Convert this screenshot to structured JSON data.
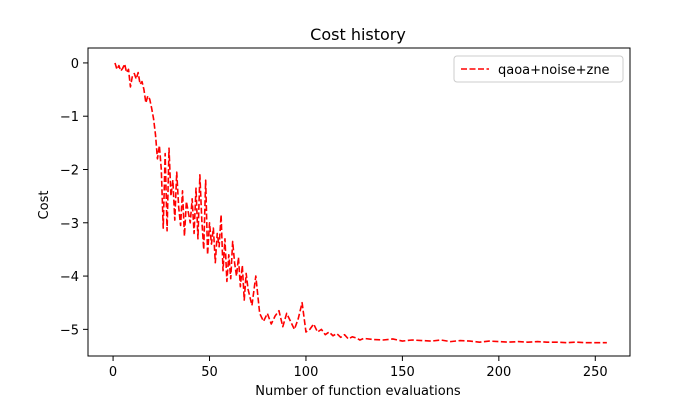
{
  "chart_data": {
    "type": "line",
    "title": "Cost history",
    "xlabel": "Number of function evaluations",
    "ylabel": "Cost",
    "xlim": [
      -13,
      268
    ],
    "ylim": [
      -5.5,
      0.28
    ],
    "xticks": [
      0,
      50,
      100,
      150,
      200,
      250
    ],
    "yticks": [
      0,
      -1,
      -2,
      -3,
      -4,
      -5
    ],
    "xtick_labels": [
      "0",
      "50",
      "100",
      "150",
      "200",
      "250"
    ],
    "ytick_labels": [
      "0",
      "−1",
      "−2",
      "−3",
      "−4",
      "−5"
    ],
    "grid": false,
    "legend_position": "top-right",
    "series": [
      {
        "name": "qaoa+noise+zne",
        "color": "#ff0000",
        "linestyle": "dashed",
        "x": [
          1,
          2,
          3,
          4,
          5,
          6,
          7,
          8,
          9,
          10,
          11,
          12,
          13,
          14,
          15,
          16,
          17,
          18,
          19,
          20,
          21,
          22,
          23,
          24,
          25,
          26,
          27,
          28,
          29,
          30,
          31,
          32,
          33,
          34,
          35,
          36,
          37,
          38,
          39,
          40,
          41,
          42,
          43,
          44,
          45,
          46,
          47,
          48,
          49,
          50,
          51,
          52,
          53,
          54,
          55,
          56,
          57,
          58,
          59,
          60,
          61,
          62,
          63,
          64,
          65,
          66,
          67,
          68,
          69,
          70,
          72,
          74,
          76,
          78,
          80,
          82,
          84,
          86,
          88,
          90,
          92,
          94,
          96,
          98,
          100,
          102,
          104,
          106,
          108,
          110,
          112,
          114,
          116,
          118,
          120,
          122,
          124,
          126,
          128,
          130,
          135,
          140,
          145,
          150,
          155,
          160,
          165,
          170,
          175,
          180,
          185,
          190,
          195,
          200,
          205,
          210,
          215,
          220,
          225,
          230,
          235,
          240,
          245,
          250,
          256
        ],
        "y": [
          0.0,
          -0.12,
          -0.05,
          -0.15,
          -0.1,
          -0.02,
          -0.18,
          -0.12,
          -0.45,
          -0.25,
          -0.2,
          -0.3,
          -0.18,
          -0.4,
          -0.35,
          -0.5,
          -0.75,
          -0.62,
          -0.68,
          -0.85,
          -1.05,
          -1.35,
          -1.8,
          -1.55,
          -2.0,
          -3.1,
          -1.7,
          -3.15,
          -1.6,
          -2.5,
          -2.2,
          -2.95,
          -2.05,
          -2.7,
          -3.05,
          -2.4,
          -3.25,
          -2.6,
          -2.8,
          -3.0,
          -2.55,
          -3.2,
          -2.35,
          -3.3,
          -2.1,
          -2.95,
          -3.5,
          -2.2,
          -3.6,
          -3.0,
          -3.4,
          -3.1,
          -3.75,
          -3.2,
          -3.45,
          -2.85,
          -3.9,
          -3.3,
          -4.1,
          -3.6,
          -4.05,
          -3.35,
          -3.75,
          -4.0,
          -3.65,
          -4.2,
          -3.8,
          -4.45,
          -3.95,
          -4.25,
          -4.55,
          -4.0,
          -4.7,
          -4.85,
          -4.7,
          -4.9,
          -4.75,
          -4.65,
          -4.95,
          -4.7,
          -4.85,
          -5.0,
          -4.8,
          -4.5,
          -5.05,
          -5.0,
          -4.9,
          -5.05,
          -5.0,
          -5.1,
          -5.05,
          -5.12,
          -5.08,
          -5.15,
          -5.1,
          -5.18,
          -5.14,
          -5.16,
          -5.2,
          -5.17,
          -5.19,
          -5.2,
          -5.18,
          -5.22,
          -5.2,
          -5.21,
          -5.22,
          -5.2,
          -5.23,
          -5.21,
          -5.22,
          -5.24,
          -5.22,
          -5.23,
          -5.24,
          -5.23,
          -5.24,
          -5.23,
          -5.24,
          -5.24,
          -5.25,
          -5.24,
          -5.25,
          -5.25,
          -5.25
        ]
      }
    ]
  }
}
